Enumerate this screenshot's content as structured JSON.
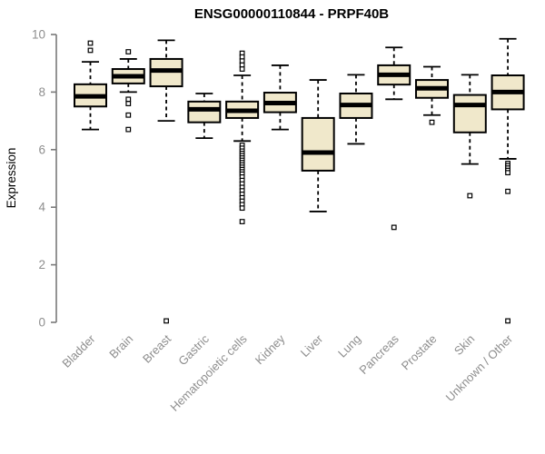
{
  "title": "ENSG00000110844 - PRPF40B",
  "chart_data": {
    "type": "boxplot",
    "title": "ENSG00000110844 - PRPF40B",
    "ylabel": "Expression",
    "xlabel": "",
    "ylim": [
      0,
      10
    ],
    "yticks": [
      0,
      2,
      4,
      6,
      8,
      10
    ],
    "grid": false,
    "legend": "none",
    "box_fill": "#F0E8CB",
    "box_border": "#000000",
    "median_color": "#000000",
    "axis_color": "#7a7a7a",
    "label_color": "#8e8e8e",
    "categories": [
      "Bladder",
      "Brain",
      "Breast",
      "Gastric",
      "Hematopoietic cells",
      "Kidney",
      "Liver",
      "Lung",
      "Pancreas",
      "Prostate",
      "Skin",
      "Unknown / Other"
    ],
    "boxes": [
      {
        "category": "Bladder",
        "whisker_low": 6.7,
        "q1": 7.5,
        "median": 7.85,
        "q3": 8.27,
        "whisker_high": 9.05,
        "outliers": [
          9.45,
          9.7
        ]
      },
      {
        "category": "Brain",
        "whisker_low": 8.0,
        "q1": 8.3,
        "median": 8.55,
        "q3": 8.8,
        "whisker_high": 9.15,
        "outliers": [
          9.4,
          7.75,
          7.6,
          7.2,
          6.7
        ]
      },
      {
        "category": "Breast",
        "whisker_low": 7.0,
        "q1": 8.2,
        "median": 8.75,
        "q3": 9.15,
        "whisker_high": 9.8,
        "outliers": [
          0.05
        ]
      },
      {
        "category": "Gastric",
        "whisker_low": 6.4,
        "q1": 6.95,
        "median": 7.4,
        "q3": 7.67,
        "whisker_high": 7.95,
        "outliers": []
      },
      {
        "category": "Hematopoietic cells",
        "whisker_low": 6.3,
        "q1": 7.1,
        "median": 7.35,
        "q3": 7.67,
        "whisker_high": 8.58,
        "outliers": [
          9.35,
          9.22,
          9.08,
          8.94,
          8.8,
          6.15,
          6.05,
          5.95,
          5.87,
          5.79,
          5.71,
          5.63,
          5.55,
          5.47,
          5.39,
          5.31,
          5.23,
          5.15,
          5.05,
          4.93,
          4.81,
          4.69,
          4.57,
          4.45,
          4.33,
          4.21,
          4.09,
          3.97,
          3.5
        ]
      },
      {
        "category": "Kidney",
        "whisker_low": 6.7,
        "q1": 7.3,
        "median": 7.62,
        "q3": 7.98,
        "whisker_high": 8.93,
        "outliers": []
      },
      {
        "category": "Liver",
        "whisker_low": 3.85,
        "q1": 5.27,
        "median": 5.9,
        "q3": 7.1,
        "whisker_high": 8.42,
        "outliers": []
      },
      {
        "category": "Lung",
        "whisker_low": 6.2,
        "q1": 7.1,
        "median": 7.55,
        "q3": 7.95,
        "whisker_high": 8.6,
        "outliers": []
      },
      {
        "category": "Pancreas",
        "whisker_low": 7.75,
        "q1": 8.26,
        "median": 8.6,
        "q3": 8.93,
        "whisker_high": 9.55,
        "outliers": [
          3.3
        ]
      },
      {
        "category": "Prostate",
        "whisker_low": 7.2,
        "q1": 7.8,
        "median": 8.13,
        "q3": 8.42,
        "whisker_high": 8.88,
        "outliers": [
          6.95
        ]
      },
      {
        "category": "Skin",
        "whisker_low": 5.5,
        "q1": 6.6,
        "median": 7.55,
        "q3": 7.9,
        "whisker_high": 8.6,
        "outliers": [
          4.4
        ]
      },
      {
        "category": "Unknown / Other",
        "whisker_low": 5.68,
        "q1": 7.4,
        "median": 8.0,
        "q3": 8.58,
        "whisker_high": 9.85,
        "outliers": [
          5.52,
          5.44,
          5.36,
          5.28,
          5.2,
          4.55,
          0.05
        ]
      }
    ]
  }
}
